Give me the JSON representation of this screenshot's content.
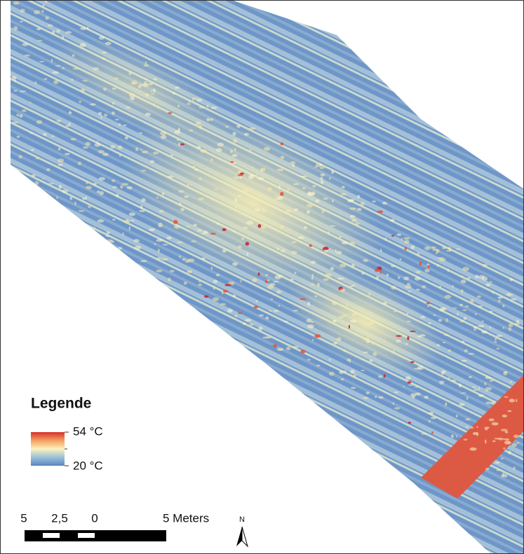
{
  "legend": {
    "title": "Legende",
    "max_label": "54 °C",
    "min_label": "20 °C"
  },
  "scale_bar": {
    "labels": [
      "5",
      "2,5",
      "0",
      "5 Meters"
    ]
  },
  "north_arrow": {
    "label": "N"
  }
}
